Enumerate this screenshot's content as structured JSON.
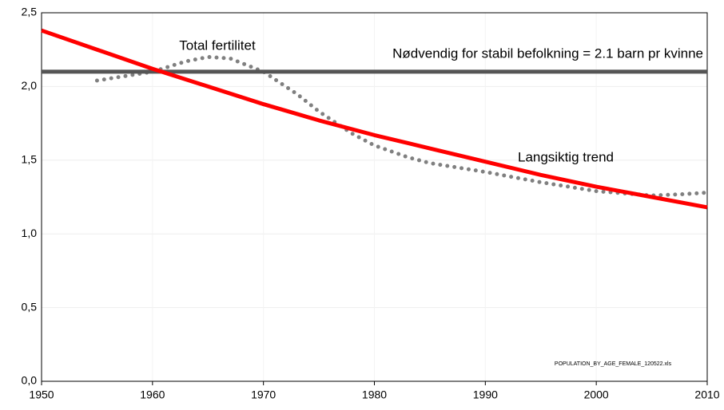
{
  "chart_data": {
    "type": "line",
    "xlim": [
      1950,
      2010
    ],
    "xticks": [
      1950,
      1960,
      1970,
      1980,
      1990,
      2000,
      2010
    ],
    "ylim": [
      0,
      2.5
    ],
    "yticks": [
      {
        "value": 0,
        "label": "0,0"
      },
      {
        "value": 0.5,
        "label": "0,5"
      },
      {
        "value": 1,
        "label": "1,0"
      },
      {
        "value": 1.5,
        "label": "1,5"
      },
      {
        "value": 2,
        "label": "2,0"
      },
      {
        "value": 2.5,
        "label": "2,5"
      }
    ],
    "grid": true,
    "series": [
      {
        "name": "Total fertilitet",
        "color": "#808080",
        "style": "dotted",
        "x": [
          1955,
          1960,
          1963,
          1965,
          1967,
          1970,
          1973,
          1975,
          1978,
          1980,
          1983,
          1985,
          1990,
          1995,
          2000,
          2005,
          2008,
          2010
        ],
        "values": [
          2.04,
          2.1,
          2.17,
          2.2,
          2.19,
          2.1,
          1.95,
          1.83,
          1.68,
          1.6,
          1.52,
          1.48,
          1.42,
          1.35,
          1.29,
          1.26,
          1.27,
          1.28
        ]
      },
      {
        "name": "Nødvendig for stabil befolkning = 2.1 barn pr kvinne",
        "color": "#555555",
        "style": "solid",
        "x": [
          1950,
          2010
        ],
        "values": [
          2.1,
          2.1
        ]
      },
      {
        "name": "Langsiktig trend",
        "color": "#ff0000",
        "style": "solid",
        "x": [
          1950,
          1955,
          1960,
          1965,
          1970,
          1975,
          1980,
          1985,
          1990,
          1995,
          2000,
          2005,
          2010
        ],
        "values": [
          2.38,
          2.25,
          2.12,
          2.0,
          1.88,
          1.77,
          1.67,
          1.58,
          1.49,
          1.4,
          1.32,
          1.25,
          1.18
        ]
      }
    ],
    "annotations": [
      "POPULATION_BY_AGE_FEMALE_120522.xls"
    ]
  }
}
